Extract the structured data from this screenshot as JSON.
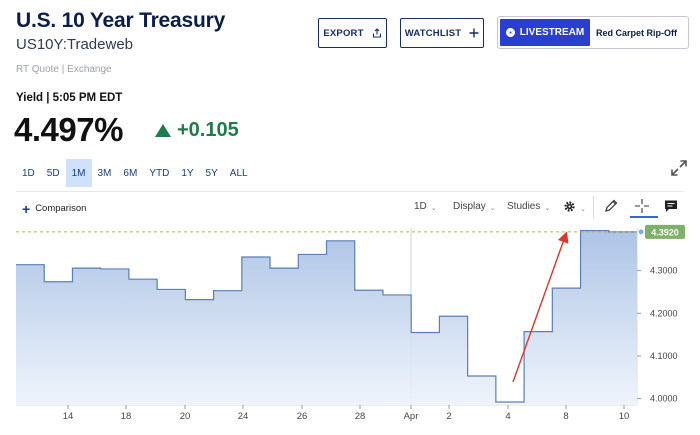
{
  "header": {
    "title": "U.S. 10 Year Treasury",
    "subtitle": "US10Y:Tradeweb",
    "quote_source": "RT Quote | Exchange"
  },
  "actions": {
    "export_label": "EXPORT",
    "watchlist_label": "WATCHLIST",
    "livestream_label": "LIVESTREAM",
    "livestream_promo": "Red Carpet Rip-Off"
  },
  "quote": {
    "label": "Yield | 5:05 PM EDT",
    "value": "4.497%",
    "change": "+0.105"
  },
  "ranges": [
    "1D",
    "5D",
    "1M",
    "3M",
    "6M",
    "YTD",
    "1Y",
    "5Y",
    "ALL"
  ],
  "active_range": "1M",
  "toolbar": {
    "comparison_label": "Comparison",
    "interval_label": "1D",
    "display_label": "Display",
    "studies_label": "Studies"
  },
  "colors": {
    "accent": "#2a3fd0",
    "positive": "#1e7b4a",
    "line": "#5a7fb8",
    "last_price_badge": "#7fb069"
  },
  "chart_data": {
    "type": "area",
    "x_ticks": [
      "14",
      "18",
      "20",
      "24",
      "26",
      "28",
      "Apr",
      "2",
      "4",
      "8",
      "10"
    ],
    "y_ticks": [
      "4.3000",
      "4.2000",
      "4.1000",
      "4.0000"
    ],
    "ylim": [
      3.985,
      4.4
    ],
    "last_value_label": "4.3920",
    "series": [
      {
        "values": [
          4.314,
          4.274,
          4.306,
          4.304,
          4.28,
          4.256,
          4.232,
          4.253,
          4.332,
          4.306,
          4.338,
          4.37,
          4.254,
          4.243,
          4.155,
          4.193,
          4.053,
          3.992,
          4.157,
          4.259,
          4.394,
          4.391
        ]
      }
    ]
  }
}
